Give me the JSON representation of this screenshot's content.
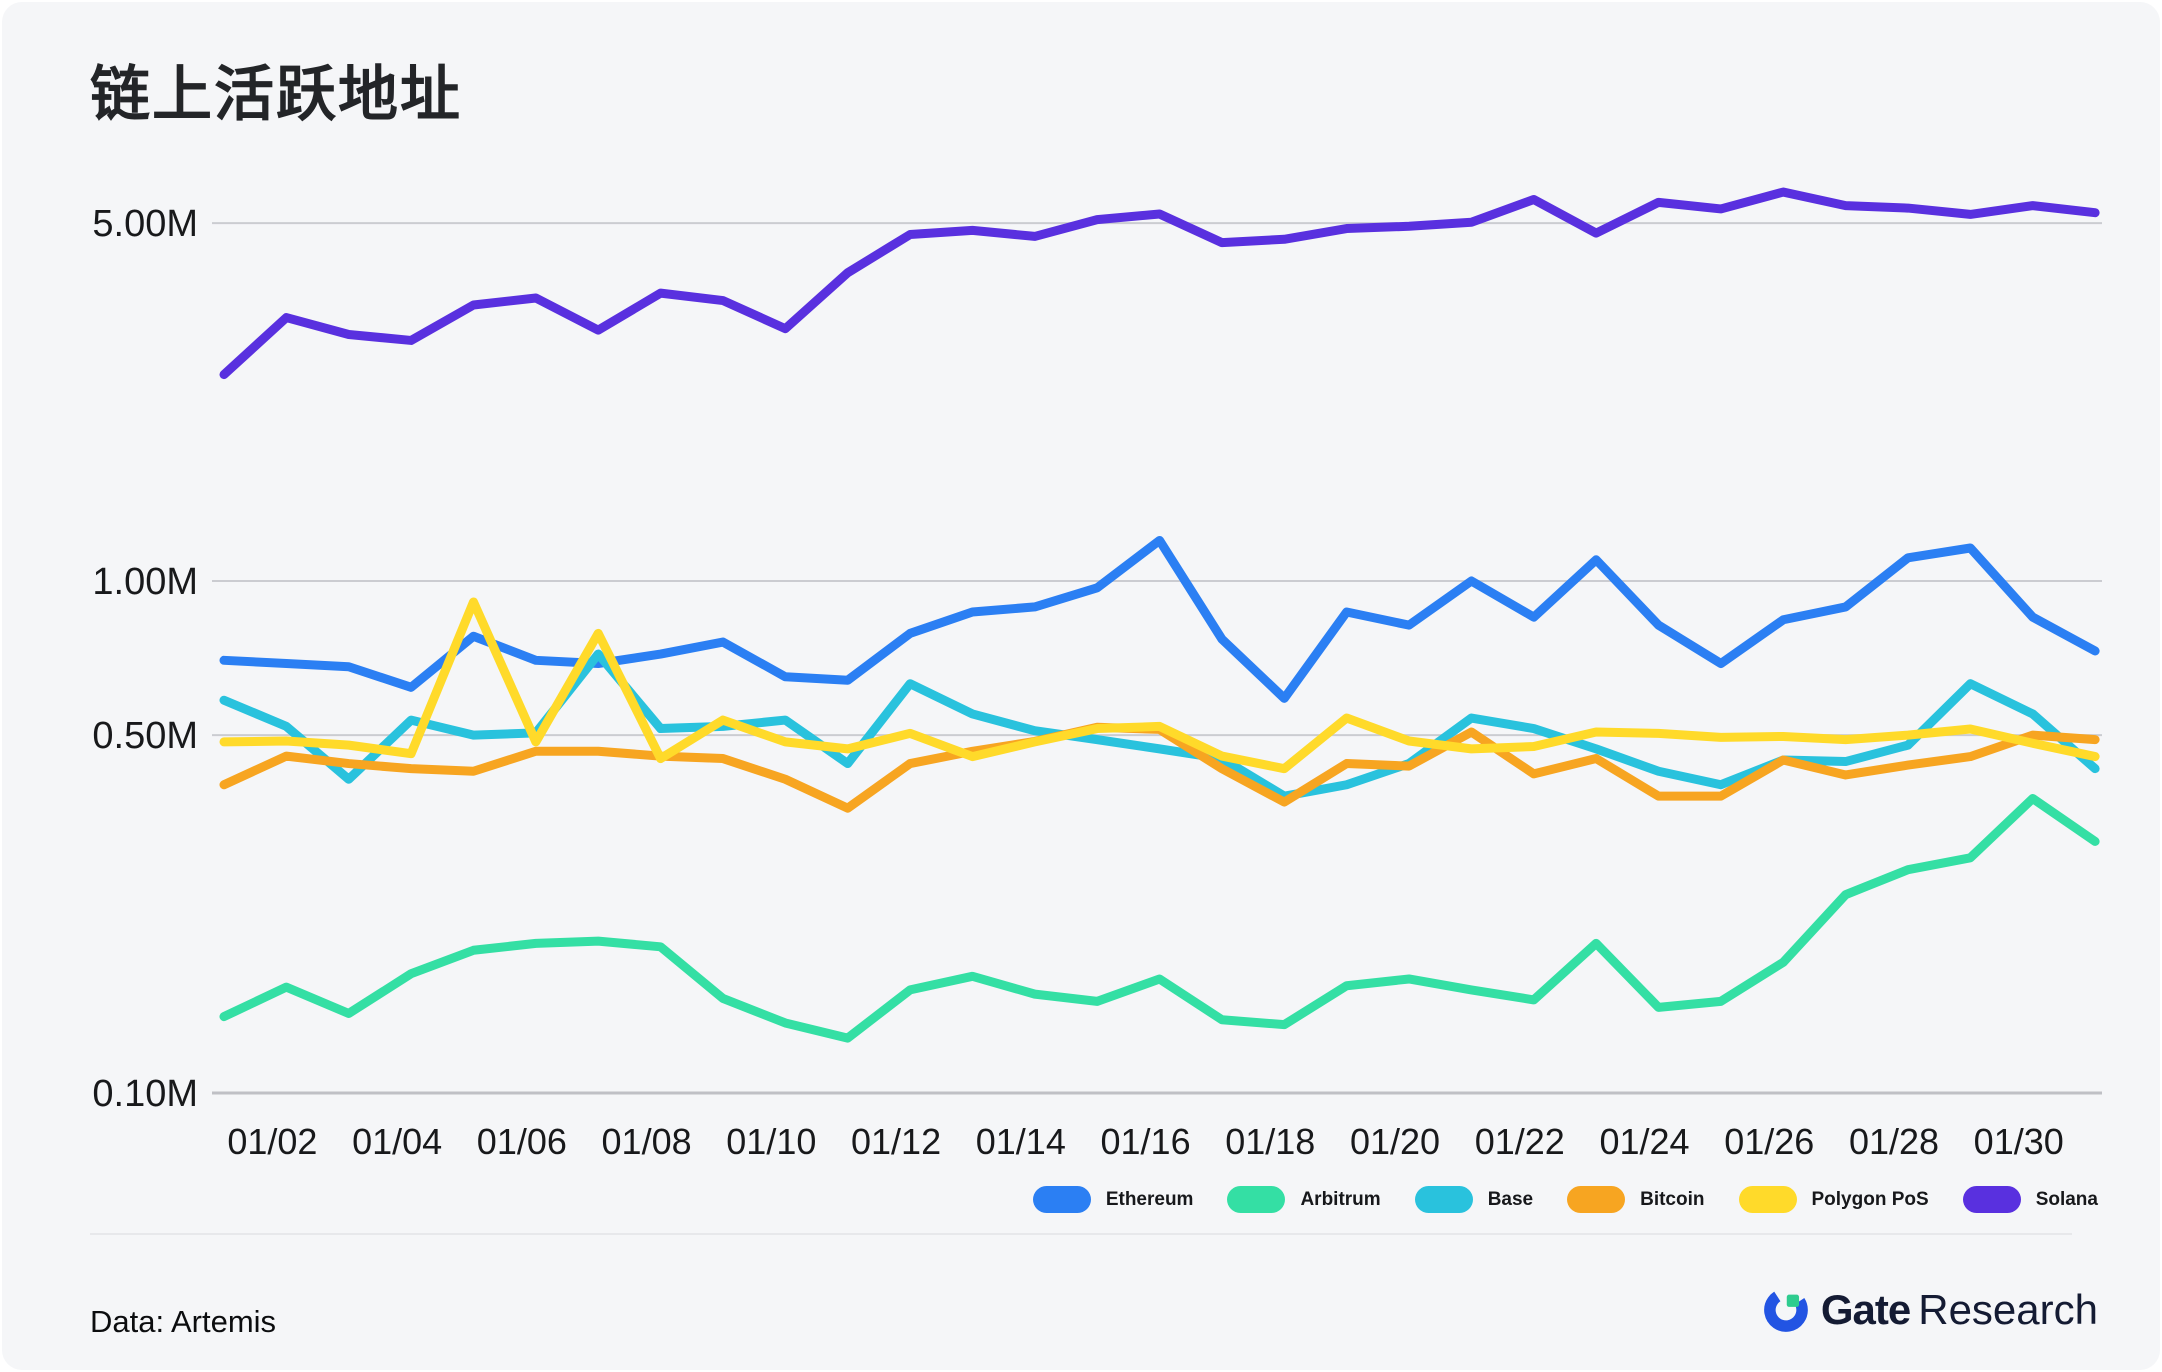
{
  "title": "链上活跃地址",
  "footer": {
    "source_label": "Data: Artemis",
    "brand_bold": "Gate",
    "brand_regular": "Research"
  },
  "colors": {
    "background": "#F5F6F8",
    "gridline": "#CBCCD1",
    "baseline": "#BFC0C5",
    "axis_text": "#18191B",
    "logo_blue": "#2254E3",
    "logo_green": "#2ECC8F"
  },
  "chart_data": {
    "type": "line",
    "y_scale": "log",
    "grid": "horizontal-only",
    "legend_position": "bottom-right",
    "ylim": [
      0.095,
      6.8
    ],
    "y_unit": "M addresses",
    "x": [
      "01/01",
      "01/02",
      "01/03",
      "01/04",
      "01/05",
      "01/06",
      "01/07",
      "01/08",
      "01/09",
      "01/10",
      "01/11",
      "01/12",
      "01/13",
      "01/14",
      "01/15",
      "01/16",
      "01/17",
      "01/18",
      "01/19",
      "01/20",
      "01/21",
      "01/22",
      "01/23",
      "01/24",
      "01/25",
      "01/26",
      "01/27",
      "01/28",
      "01/29",
      "01/30",
      "01/31"
    ],
    "y_ticks": [
      {
        "label": "5.00M",
        "value": 5.0
      },
      {
        "label": "1.00M",
        "value": 1.0
      },
      {
        "label": "0.50M",
        "value": 0.5
      },
      {
        "label": "0.10M",
        "value": 0.1
      }
    ],
    "x_ticks": [
      {
        "label": "01/02",
        "day": 2
      },
      {
        "label": "01/04",
        "day": 4
      },
      {
        "label": "01/06",
        "day": 6
      },
      {
        "label": "01/08",
        "day": 8
      },
      {
        "label": "01/10",
        "day": 10
      },
      {
        "label": "01/12",
        "day": 12
      },
      {
        "label": "01/14",
        "day": 14
      },
      {
        "label": "01/16",
        "day": 16
      },
      {
        "label": "01/18",
        "day": 18
      },
      {
        "label": "01/20",
        "day": 20
      },
      {
        "label": "01/22",
        "day": 22
      },
      {
        "label": "01/24",
        "day": 24
      },
      {
        "label": "01/26",
        "day": 26
      },
      {
        "label": "01/28",
        "day": 28
      },
      {
        "label": "01/30",
        "day": 30
      }
    ],
    "series": [
      {
        "name": "Ethereum",
        "color": "#2B7FF3",
        "values": [
          0.7,
          0.69,
          0.68,
          0.62,
          0.78,
          0.7,
          0.69,
          0.72,
          0.76,
          0.65,
          0.64,
          0.79,
          0.87,
          0.89,
          0.97,
          1.2,
          0.77,
          0.59,
          0.87,
          0.82,
          1.0,
          0.85,
          1.1,
          0.82,
          0.69,
          0.84,
          0.89,
          1.11,
          1.16,
          0.85,
          0.73
        ]
      },
      {
        "name": "Arbitrum",
        "color": "#34DFA4",
        "values": [
          0.141,
          0.161,
          0.143,
          0.171,
          0.19,
          0.196,
          0.198,
          0.193,
          0.153,
          0.137,
          0.128,
          0.159,
          0.169,
          0.156,
          0.151,
          0.167,
          0.139,
          0.136,
          0.162,
          0.167,
          0.159,
          0.152,
          0.196,
          0.147,
          0.151,
          0.18,
          0.244,
          0.273,
          0.288,
          0.376,
          0.31
        ]
      },
      {
        "name": "Base",
        "color": "#29C2DD",
        "values": [
          0.585,
          0.52,
          0.41,
          0.535,
          0.5,
          0.505,
          0.72,
          0.515,
          0.52,
          0.535,
          0.44,
          0.63,
          0.55,
          0.51,
          0.49,
          0.47,
          0.45,
          0.38,
          0.4,
          0.44,
          0.54,
          0.515,
          0.47,
          0.425,
          0.4,
          0.447,
          0.444,
          0.478,
          0.63,
          0.55,
          0.43
        ]
      },
      {
        "name": "Bitcoin",
        "color": "#F7A521",
        "values": [
          0.4,
          0.455,
          0.44,
          0.43,
          0.425,
          0.465,
          0.465,
          0.455,
          0.45,
          0.41,
          0.36,
          0.44,
          0.465,
          0.486,
          0.518,
          0.513,
          0.43,
          0.37,
          0.44,
          0.435,
          0.507,
          0.42,
          0.45,
          0.38,
          0.38,
          0.447,
          0.418,
          0.437,
          0.454,
          0.5,
          0.49
        ]
      },
      {
        "name": "Polygon PoS",
        "color": "#FFDA2A",
        "values": [
          0.485,
          0.487,
          0.478,
          0.46,
          0.91,
          0.485,
          0.79,
          0.45,
          0.535,
          0.485,
          0.47,
          0.504,
          0.454,
          0.485,
          0.515,
          0.52,
          0.455,
          0.43,
          0.54,
          0.487,
          0.47,
          0.475,
          0.507,
          0.504,
          0.495,
          0.497,
          0.49,
          0.5,
          0.514,
          0.482,
          0.454
        ]
      },
      {
        "name": "Solana",
        "color": "#5930DF",
        "values": [
          2.53,
          3.27,
          3.03,
          2.95,
          3.46,
          3.57,
          3.09,
          3.65,
          3.53,
          3.11,
          4.0,
          4.75,
          4.84,
          4.71,
          5.08,
          5.21,
          4.58,
          4.65,
          4.88,
          4.93,
          5.02,
          5.56,
          4.78,
          5.49,
          5.33,
          5.75,
          5.41,
          5.35,
          5.2,
          5.41,
          5.24
        ]
      }
    ]
  }
}
